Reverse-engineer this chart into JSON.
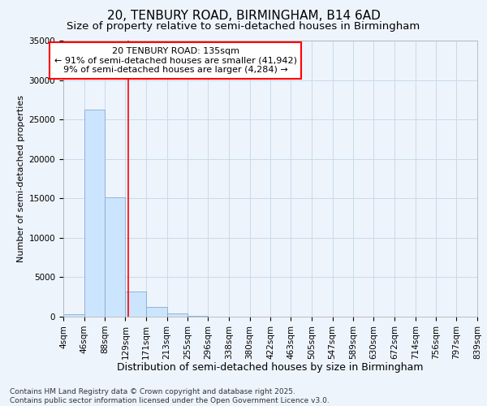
{
  "title1": "20, TENBURY ROAD, BIRMINGHAM, B14 6AD",
  "title2": "Size of property relative to semi-detached houses in Birmingham",
  "xlabel": "Distribution of semi-detached houses by size in Birmingham",
  "ylabel": "Number of semi-detached properties",
  "bin_labels": [
    "4sqm",
    "46sqm",
    "88sqm",
    "129sqm",
    "171sqm",
    "213sqm",
    "255sqm",
    "296sqm",
    "338sqm",
    "380sqm",
    "422sqm",
    "463sqm",
    "505sqm",
    "547sqm",
    "589sqm",
    "630sqm",
    "672sqm",
    "714sqm",
    "756sqm",
    "797sqm",
    "839sqm"
  ],
  "bin_edges": [
    4,
    46,
    88,
    129,
    171,
    213,
    255,
    296,
    338,
    380,
    422,
    463,
    505,
    547,
    589,
    630,
    672,
    714,
    756,
    797,
    839
  ],
  "bar_heights": [
    350,
    26200,
    15100,
    3200,
    1200,
    400,
    100,
    50,
    20,
    10,
    5,
    3,
    2,
    2,
    1,
    1,
    1,
    1,
    1,
    1
  ],
  "bar_color": "#cce5ff",
  "bar_edge_color": "#88aacc",
  "grid_color": "#c8daea",
  "background_color": "#eef4fc",
  "red_line_x": 135,
  "ylim": [
    0,
    35000
  ],
  "annotation_text": "20 TENBURY ROAD: 135sqm\n← 91% of semi-detached houses are smaller (41,942)\n9% of semi-detached houses are larger (4,284) →",
  "annotation_box_color": "white",
  "annotation_box_edge_color": "red",
  "footer_text": "Contains HM Land Registry data © Crown copyright and database right 2025.\nContains public sector information licensed under the Open Government Licence v3.0.",
  "title1_fontsize": 11,
  "title2_fontsize": 9.5,
  "xlabel_fontsize": 9,
  "ylabel_fontsize": 8,
  "tick_fontsize": 7.5,
  "annotation_fontsize": 8,
  "footer_fontsize": 6.5,
  "ytick_labels": [
    "0",
    "5000",
    "10000",
    "15000",
    "20000",
    "25000",
    "30000",
    "35000"
  ],
  "ytick_values": [
    0,
    5000,
    10000,
    15000,
    20000,
    25000,
    30000,
    35000
  ]
}
